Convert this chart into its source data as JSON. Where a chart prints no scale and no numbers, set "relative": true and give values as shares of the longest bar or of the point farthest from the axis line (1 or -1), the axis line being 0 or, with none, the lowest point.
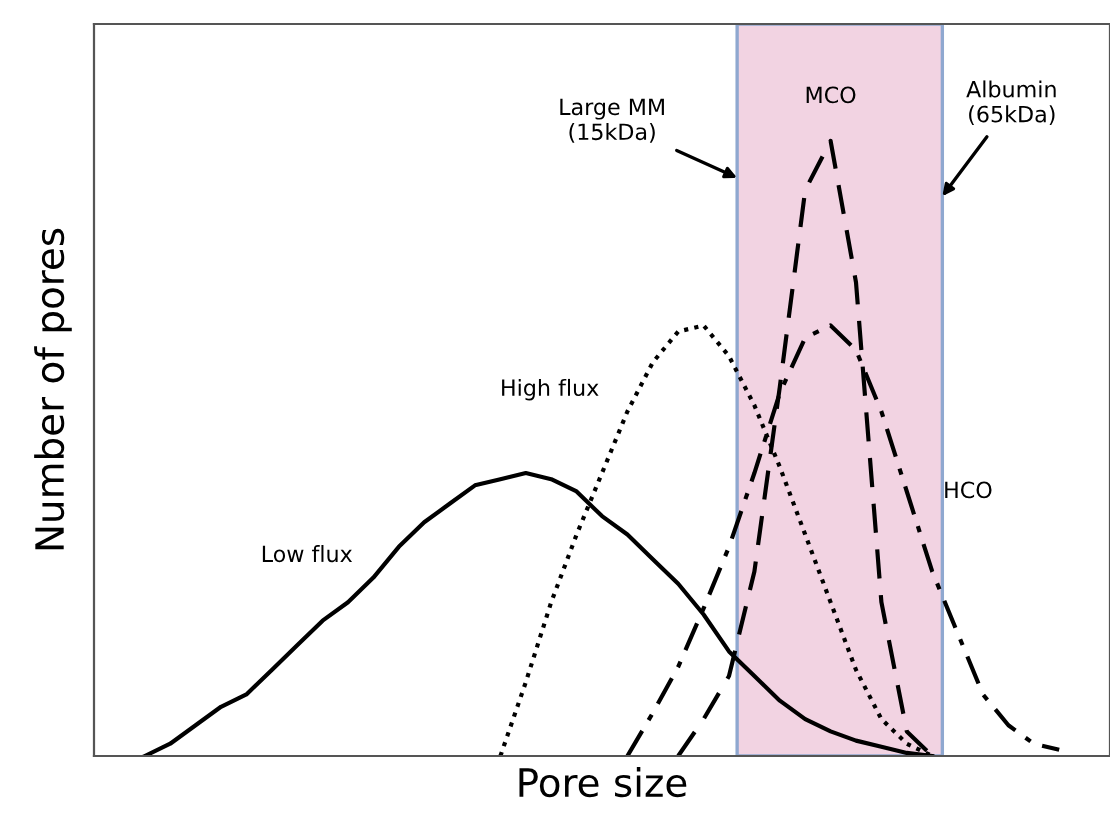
{
  "chart_data": {
    "type": "line",
    "relative": true,
    "xlabel": "Pore size",
    "ylabel": "Number of pores",
    "tick_labels": false,
    "marker": "none",
    "categories": [
      null,
      null,
      null,
      null,
      null,
      null,
      null,
      null,
      null,
      null,
      null,
      null,
      null,
      null,
      null,
      null,
      null,
      null,
      null,
      null,
      null,
      null,
      null,
      null,
      null,
      null,
      null,
      null,
      null,
      null,
      null,
      null,
      null,
      null,
      null,
      null,
      null,
      null,
      null,
      null,
      null
    ],
    "series": [
      {
        "name": "Low flux",
        "color": "#000000",
        "line_style": "solid",
        "values": [
          null,
          null,
          0,
          0.02,
          0.05,
          0.08,
          0.1,
          0.14,
          0.18,
          0.22,
          0.25,
          0.29,
          0.34,
          0.38,
          0.41,
          0.44,
          0.45,
          0.46,
          0.45,
          0.43,
          0.39,
          0.36,
          0.32,
          0.28,
          0.23,
          0.17,
          0.13,
          0.09,
          0.06,
          0.04,
          0.025,
          0.015,
          0.005,
          0,
          null,
          null,
          null,
          null,
          null,
          null,
          null
        ]
      },
      {
        "name": "High flux",
        "color": "#000000",
        "line_style": "dotted",
        "values": [
          null,
          null,
          null,
          null,
          null,
          null,
          null,
          null,
          null,
          null,
          null,
          null,
          null,
          null,
          null,
          null,
          0,
          0.12,
          0.25,
          0.36,
          0.46,
          0.56,
          0.64,
          0.69,
          0.7,
          0.65,
          0.57,
          0.47,
          0.36,
          0.25,
          0.14,
          0.06,
          0.02,
          0,
          null,
          null,
          null,
          null,
          null,
          null,
          null
        ]
      },
      {
        "name": "MCO",
        "color": "#000000",
        "line_style": "dashed",
        "values": [
          null,
          null,
          null,
          null,
          null,
          null,
          null,
          null,
          null,
          null,
          null,
          null,
          null,
          null,
          null,
          null,
          null,
          null,
          null,
          null,
          null,
          null,
          null,
          0,
          0.06,
          0.13,
          0.3,
          0.6,
          0.92,
          1.0,
          0.77,
          0.25,
          0.04,
          0,
          null,
          null,
          null,
          null,
          null,
          null,
          null
        ]
      },
      {
        "name": "HCO",
        "color": "#000000",
        "line_style": "dashdot",
        "values": [
          null,
          null,
          null,
          null,
          null,
          null,
          null,
          null,
          null,
          null,
          null,
          null,
          null,
          null,
          null,
          null,
          null,
          null,
          null,
          null,
          null,
          0,
          0.07,
          0.145,
          0.24,
          0.34,
          0.46,
          0.59,
          0.68,
          0.7,
          0.66,
          0.56,
          0.43,
          0.3,
          0.2,
          0.1,
          0.05,
          0.02,
          0.01,
          null,
          null
        ]
      }
    ],
    "annotations": [
      "Large MM\n(15kDa)",
      "Albumin\n(65kDa)"
    ]
  }
}
